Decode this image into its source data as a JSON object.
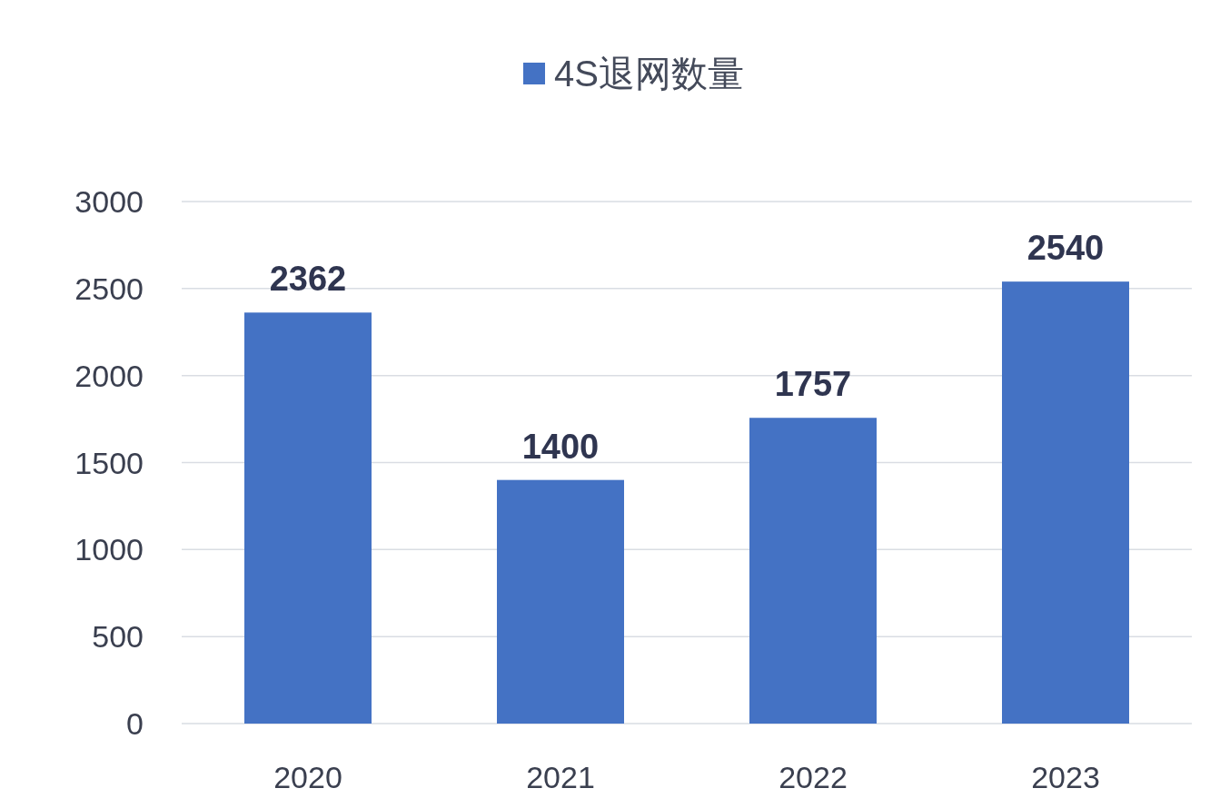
{
  "chart_data": {
    "type": "bar",
    "categories": [
      "2020",
      "2021",
      "2022",
      "2023"
    ],
    "series": [
      {
        "name": "4S退网数量",
        "color": "#4472c4",
        "values": [
          2362,
          1400,
          1757,
          2540
        ]
      }
    ],
    "ylim": [
      0,
      3000
    ],
    "yticks": [
      0,
      500,
      1000,
      1500,
      2000,
      2500,
      3000
    ],
    "grid": "y",
    "legend": "top",
    "data_labels": true
  }
}
